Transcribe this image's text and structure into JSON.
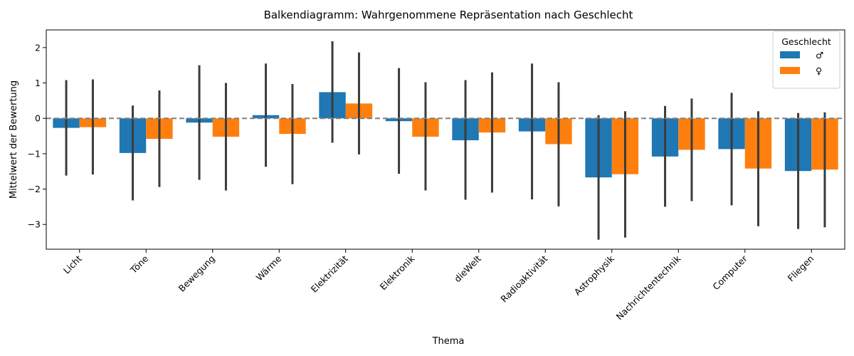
{
  "chart_data": {
    "type": "bar",
    "title": "Balkendiagramm: Wahrgenommene Repräsentation nach Geschlecht",
    "xlabel": "Thema",
    "ylabel": "Mittelwert der Bewertung",
    "ylim": [
      -3.7,
      2.5
    ],
    "yticks": [
      -3,
      -2,
      -1,
      0,
      1,
      2
    ],
    "reference_line": 0,
    "grid": false,
    "legend": {
      "title": "Geschlecht",
      "placement": "top-right"
    },
    "categories": [
      "Licht",
      "Töne",
      "Bewegung",
      "Wärme",
      "Elektrizität",
      "Elektronik",
      "dieWelt",
      "Radioaktivität",
      "Astrophysik",
      "Nachrichtentechnik",
      "Computer",
      "Fliegen"
    ],
    "series": [
      {
        "name": "♂",
        "color": "#1f77b4",
        "values": [
          -0.27,
          -0.98,
          -0.12,
          0.09,
          0.74,
          -0.08,
          -0.62,
          -0.37,
          -1.67,
          -1.08,
          -0.87,
          -1.49
        ],
        "error_low": [
          -1.62,
          -2.32,
          -1.74,
          -1.37,
          -0.69,
          -1.57,
          -2.3,
          -2.29,
          -3.43,
          -2.5,
          -2.46,
          -3.13
        ],
        "error_high": [
          1.08,
          0.36,
          1.5,
          1.55,
          2.18,
          1.42,
          1.08,
          1.55,
          0.09,
          0.35,
          0.72,
          0.15
        ]
      },
      {
        "name": "♀",
        "color": "#ff7f0e",
        "values": [
          -0.25,
          -0.58,
          -0.52,
          -0.44,
          0.42,
          -0.52,
          -0.4,
          -0.73,
          -1.58,
          -0.89,
          -1.42,
          -1.45
        ],
        "error_low": [
          -1.59,
          -1.94,
          -2.04,
          -1.86,
          -1.02,
          -2.04,
          -2.1,
          -2.49,
          -3.37,
          -2.34,
          -3.05,
          -3.08
        ],
        "error_high": [
          1.1,
          0.79,
          1.0,
          0.97,
          1.86,
          1.02,
          1.3,
          1.02,
          0.2,
          0.56,
          0.2,
          0.17
        ]
      }
    ]
  }
}
